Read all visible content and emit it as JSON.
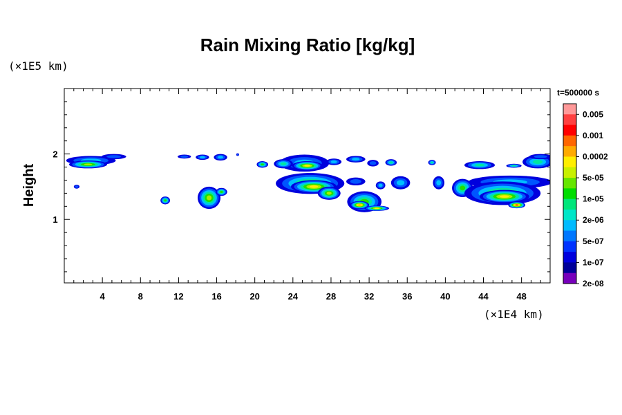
{
  "chart_data": {
    "type": "heatmap",
    "title": "Rain Mixing Ratio [kg/kg]",
    "ylabel": "Height",
    "xlabel": "",
    "x_scale_label": "(×1E4 km)",
    "y_scale_label": "(×1E5 km)",
    "time_label": "t=500000 s",
    "xlim": [
      0,
      51
    ],
    "ylim": [
      0.03,
      3.0
    ],
    "x_ticks": [
      "4",
      "8",
      "12",
      "16",
      "20",
      "24",
      "28",
      "32",
      "36",
      "40",
      "44",
      "48"
    ],
    "x_tick_values": [
      4,
      8,
      12,
      16,
      20,
      24,
      28,
      32,
      36,
      40,
      44,
      48
    ],
    "y_ticks": [
      "1",
      "2"
    ],
    "y_tick_values": [
      1,
      2
    ],
    "colorbar": {
      "labels": [
        "0.005",
        "0.001",
        "0.0002",
        "5e-05",
        "1e-05",
        "2e-06",
        "5e-07",
        "1e-07",
        "2e-08"
      ],
      "colors": [
        "#ff9999",
        "#ff4040",
        "#ff0000",
        "#ff6600",
        "#ffaa00",
        "#ffee00",
        "#c8f000",
        "#66e600",
        "#00dd00",
        "#00e67a",
        "#00e6c8",
        "#00bbff",
        "#0077ff",
        "#0033ff",
        "#0000dd",
        "#000099",
        "#7700bb"
      ]
    },
    "cells": [
      {
        "x": 2.8,
        "y": 1.9,
        "rx": 2.6,
        "ry": 0.07,
        "level": 2
      },
      {
        "x": 2.5,
        "y": 1.84,
        "rx": 2.0,
        "ry": 0.06,
        "level": 5
      },
      {
        "x": 5.2,
        "y": 1.96,
        "rx": 1.3,
        "ry": 0.04,
        "level": 1
      },
      {
        "x": 1.3,
        "y": 1.5,
        "rx": 0.3,
        "ry": 0.03,
        "level": 1
      },
      {
        "x": 12.6,
        "y": 1.96,
        "rx": 0.7,
        "ry": 0.03,
        "level": 1
      },
      {
        "x": 14.5,
        "y": 1.95,
        "rx": 0.7,
        "ry": 0.04,
        "level": 2
      },
      {
        "x": 16.4,
        "y": 1.95,
        "rx": 0.7,
        "ry": 0.05,
        "level": 2
      },
      {
        "x": 10.6,
        "y": 1.29,
        "rx": 0.5,
        "ry": 0.06,
        "level": 4
      },
      {
        "x": 15.2,
        "y": 1.33,
        "rx": 1.2,
        "ry": 0.17,
        "level": 5
      },
      {
        "x": 16.5,
        "y": 1.42,
        "rx": 0.6,
        "ry": 0.06,
        "level": 4
      },
      {
        "x": 20.8,
        "y": 1.84,
        "rx": 0.6,
        "ry": 0.05,
        "level": 4
      },
      {
        "x": 25.2,
        "y": 1.86,
        "rx": 2.6,
        "ry": 0.13,
        "level": 2
      },
      {
        "x": 25.5,
        "y": 1.82,
        "rx": 1.6,
        "ry": 0.07,
        "level": 6
      },
      {
        "x": 23.0,
        "y": 1.85,
        "rx": 1.0,
        "ry": 0.07,
        "level": 3
      },
      {
        "x": 28.3,
        "y": 1.88,
        "rx": 0.8,
        "ry": 0.05,
        "level": 2
      },
      {
        "x": 30.6,
        "y": 1.92,
        "rx": 1.0,
        "ry": 0.05,
        "level": 2
      },
      {
        "x": 32.4,
        "y": 1.86,
        "rx": 0.6,
        "ry": 0.05,
        "level": 1
      },
      {
        "x": 34.3,
        "y": 1.87,
        "rx": 0.6,
        "ry": 0.05,
        "level": 3
      },
      {
        "x": 25.8,
        "y": 1.55,
        "rx": 3.6,
        "ry": 0.16,
        "level": 4
      },
      {
        "x": 26.2,
        "y": 1.5,
        "rx": 2.4,
        "ry": 0.1,
        "level": 6
      },
      {
        "x": 27.8,
        "y": 1.4,
        "rx": 1.2,
        "ry": 0.1,
        "level": 5
      },
      {
        "x": 31.5,
        "y": 1.27,
        "rx": 1.8,
        "ry": 0.16,
        "level": 4
      },
      {
        "x": 31.0,
        "y": 1.22,
        "rx": 1.0,
        "ry": 0.06,
        "level": 7
      },
      {
        "x": 32.8,
        "y": 1.17,
        "rx": 1.3,
        "ry": 0.04,
        "level": 6
      },
      {
        "x": 33.2,
        "y": 1.52,
        "rx": 0.5,
        "ry": 0.06,
        "level": 2
      },
      {
        "x": 35.3,
        "y": 1.56,
        "rx": 1.0,
        "ry": 0.1,
        "level": 2
      },
      {
        "x": 30.6,
        "y": 1.58,
        "rx": 1.0,
        "ry": 0.06,
        "level": 1
      },
      {
        "x": 38.6,
        "y": 1.87,
        "rx": 0.4,
        "ry": 0.04,
        "level": 3
      },
      {
        "x": 39.3,
        "y": 1.56,
        "rx": 0.6,
        "ry": 0.1,
        "level": 2
      },
      {
        "x": 41.8,
        "y": 1.48,
        "rx": 1.1,
        "ry": 0.14,
        "level": 4
      },
      {
        "x": 43.6,
        "y": 1.83,
        "rx": 1.6,
        "ry": 0.06,
        "level": 3
      },
      {
        "x": 47.2,
        "y": 1.82,
        "rx": 0.8,
        "ry": 0.03,
        "level": 3
      },
      {
        "x": 49.7,
        "y": 1.88,
        "rx": 1.6,
        "ry": 0.1,
        "level": 3
      },
      {
        "x": 50.0,
        "y": 1.96,
        "rx": 1.2,
        "ry": 0.04,
        "level": 1
      },
      {
        "x": 46.8,
        "y": 1.57,
        "rx": 4.4,
        "ry": 0.1,
        "level": 2
      },
      {
        "x": 46.0,
        "y": 1.4,
        "rx": 4.0,
        "ry": 0.18,
        "level": 4
      },
      {
        "x": 46.2,
        "y": 1.35,
        "rx": 2.6,
        "ry": 0.1,
        "level": 6
      },
      {
        "x": 47.5,
        "y": 1.22,
        "rx": 0.9,
        "ry": 0.05,
        "level": 8
      },
      {
        "x": 18.2,
        "y": 1.99,
        "rx": 0.15,
        "ry": 0.02,
        "level": 1
      }
    ]
  }
}
